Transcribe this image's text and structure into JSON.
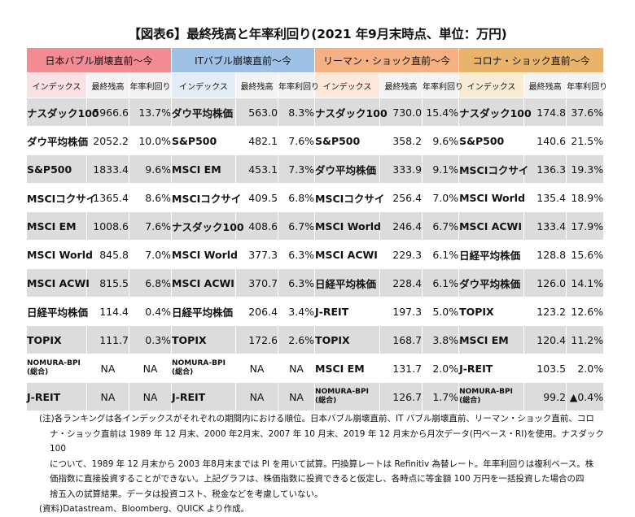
{
  "title": "【図表6】最終残高と年率利回り(2021 年9月末時点、単位：万円)",
  "eras": [
    "日本バブル崩壊直前～今",
    "ITバブル崩壊直前～今",
    "リーマン・ショック直前～今",
    "コロナ・ショック直前～今"
  ],
  "subheaders": [
    "インデックス",
    "最終残高",
    "年率利回り"
  ],
  "rows": [
    [
      [
        "ナスダック100",
        "5966.6",
        "13.7%"
      ],
      [
        "ダウ平均株価",
        "563.0",
        "8.3%"
      ],
      [
        "ナスダック100",
        "730.0",
        "15.4%"
      ],
      [
        "ナスダック100",
        "174.8",
        "37.6%"
      ]
    ],
    [
      [
        "ダウ平均株価",
        "2052.2",
        "10.0%"
      ],
      [
        "S&P500",
        "482.1",
        "7.6%"
      ],
      [
        "S&P500",
        "358.2",
        "9.6%"
      ],
      [
        "S&P500",
        "140.6",
        "21.5%"
      ]
    ],
    [
      [
        "S&P500",
        "1833.4",
        "9.6%"
      ],
      [
        "MSCI EM",
        "453.1",
        "7.3%"
      ],
      [
        "ダウ平均株価",
        "333.9",
        "9.1%"
      ],
      [
        "MSCIコクサイ",
        "136.3",
        "19.3%"
      ]
    ],
    [
      [
        "MSCIコクサイ",
        "1365.4",
        "8.6%"
      ],
      [
        "MSCIコクサイ",
        "409.5",
        "6.8%"
      ],
      [
        "MSCIコクサイ",
        "256.4",
        "7.0%"
      ],
      [
        "MSCI World",
        "135.4",
        "18.9%"
      ]
    ],
    [
      [
        "MSCI EM",
        "1008.6",
        "7.6%"
      ],
      [
        "ナスダック100",
        "408.6",
        "6.7%"
      ],
      [
        "MSCI World",
        "246.4",
        "6.7%"
      ],
      [
        "MSCI ACWI",
        "133.4",
        "17.9%"
      ]
    ],
    [
      [
        "MSCI World",
        "845.8",
        "7.0%"
      ],
      [
        "MSCI World",
        "377.3",
        "6.3%"
      ],
      [
        "MSCI ACWI",
        "229.3",
        "6.1%"
      ],
      [
        "日経平均株価",
        "128.8",
        "15.6%"
      ]
    ],
    [
      [
        "MSCI ACWI",
        "815.5",
        "6.8%"
      ],
      [
        "MSCI ACWI",
        "370.7",
        "6.3%"
      ],
      [
        "日経平均株価",
        "228.4",
        "6.1%"
      ],
      [
        "ダウ平均株価",
        "126.0",
        "14.1%"
      ]
    ],
    [
      [
        "日経平均株価",
        "114.4",
        "0.4%"
      ],
      [
        "日経平均株価",
        "206.4",
        "3.4%"
      ],
      [
        "J-REIT",
        "197.3",
        "5.0%"
      ],
      [
        "TOPIX",
        "123.2",
        "12.6%"
      ]
    ],
    [
      [
        "TOPIX",
        "111.7",
        "0.3%"
      ],
      [
        "TOPIX",
        "172.6",
        "2.6%"
      ],
      [
        "TOPIX",
        "168.7",
        "3.8%"
      ],
      [
        "MSCI EM",
        "120.4",
        "11.2%"
      ]
    ],
    [
      [
        "NOMURA-BPI\n(総合)",
        "NA",
        "NA"
      ],
      [
        "NOMURA-BPI\n(総合)",
        "NA",
        "NA"
      ],
      [
        "MSCI EM",
        "131.7",
        "2.0%"
      ],
      [
        "J-REIT",
        "103.5",
        "2.0%"
      ]
    ],
    [
      [
        "J-REIT",
        "NA",
        "NA"
      ],
      [
        "J-REIT",
        "NA",
        "NA"
      ],
      [
        "NOMURA-BPI\n(総合)",
        "126.7",
        "1.7%"
      ],
      [
        "NOMURA-BPI\n(総合)",
        "99.2",
        "▲0.4%"
      ]
    ]
  ],
  "notes": {
    "line1": "(注)各ランキングは各インデックスがそれぞれの期間内における順位。日本バブル崩壊直前、IT バブル崩壊直前、リーマン・ショック直前、コロ",
    "line2": "ナ・ショック直前は 1989 年 12 月末、2000 年2月末、2007 年 10 月末、2019 年 12 月末から月次データ(円ベース・RI)を使用。ナスダック 100",
    "line3": "について、1989 年 12 月末から 2003 年8月末までは PI を用いて試算。円換算レートは Refinitiv 為替レート。年率利回りは複利ベース。株",
    "line4": "価指数に直接投資することができない。上記グラフは、株価指数に投資できると仮定し、各時点に等金額 100 万円を一括投資した場合の四",
    "line5": "捨五入の試算結果。データは投資コスト、税金などを考慮していない。",
    "source": "(資料)Datastream、Bloomberg、QUICK より作成。"
  }
}
